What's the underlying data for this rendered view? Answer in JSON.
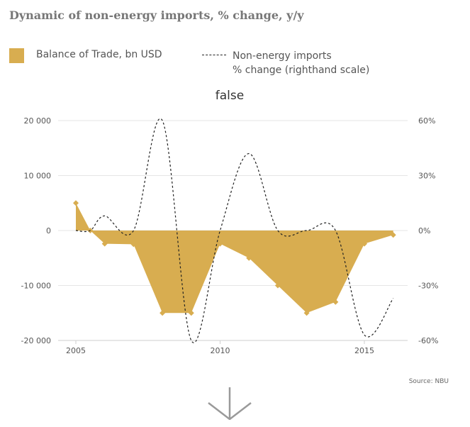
{
  "header": {
    "title": "Dynamic of non-energy imports, % change, y/y"
  },
  "legend": {
    "series1": "Balance of Trade, bn USD",
    "series2_line1": "Non-energy imports",
    "series2_line2": "% change (righthand scale)"
  },
  "source": "Source: NBU",
  "colors": {
    "area": "#d8ad50",
    "line": "#222222",
    "grid": "#e6e6e6",
    "axis_text": "#555555"
  },
  "icons": {
    "scroll": "chevron-down-arrow-icon"
  },
  "chart_data": {
    "type": "area",
    "title": "false",
    "x": [
      2005,
      2006,
      2007,
      2008,
      2009,
      2010,
      2011,
      2012,
      2013,
      2014,
      2015,
      2016
    ],
    "xticks": [
      "2005",
      "2010",
      "2015"
    ],
    "yticks_left": [
      "20 000",
      "10 000",
      "0",
      "-10 000",
      "-20 000"
    ],
    "ylim_left": [
      -20000,
      20000
    ],
    "yticks_right": [
      "60%",
      "30%",
      "0%",
      "-30%",
      "-60%"
    ],
    "ylim_right": [
      -60,
      60
    ],
    "series": [
      {
        "name": "Balance of Trade, bn USD",
        "axis": "left",
        "x": [
          2005,
          2005.5,
          2006,
          2007,
          2008,
          2009,
          2010,
          2011,
          2012,
          2013,
          2014,
          2015,
          2016
        ],
        "values": [
          5000,
          0,
          -2400,
          -2500,
          -15000,
          -15000,
          -2400,
          -5000,
          -10000,
          -15000,
          -13000,
          -2400,
          -800
        ]
      },
      {
        "name": "Non-energy imports % change (righthand scale)",
        "axis": "right",
        "x": [
          2005,
          2005.5,
          2006,
          2007,
          2008,
          2009,
          2010,
          2011,
          2012,
          2013,
          2014,
          2015,
          2016
        ],
        "values": [
          0,
          0,
          8,
          0,
          60,
          -60,
          0,
          42,
          0,
          0,
          0,
          -57,
          -37
        ]
      }
    ]
  }
}
